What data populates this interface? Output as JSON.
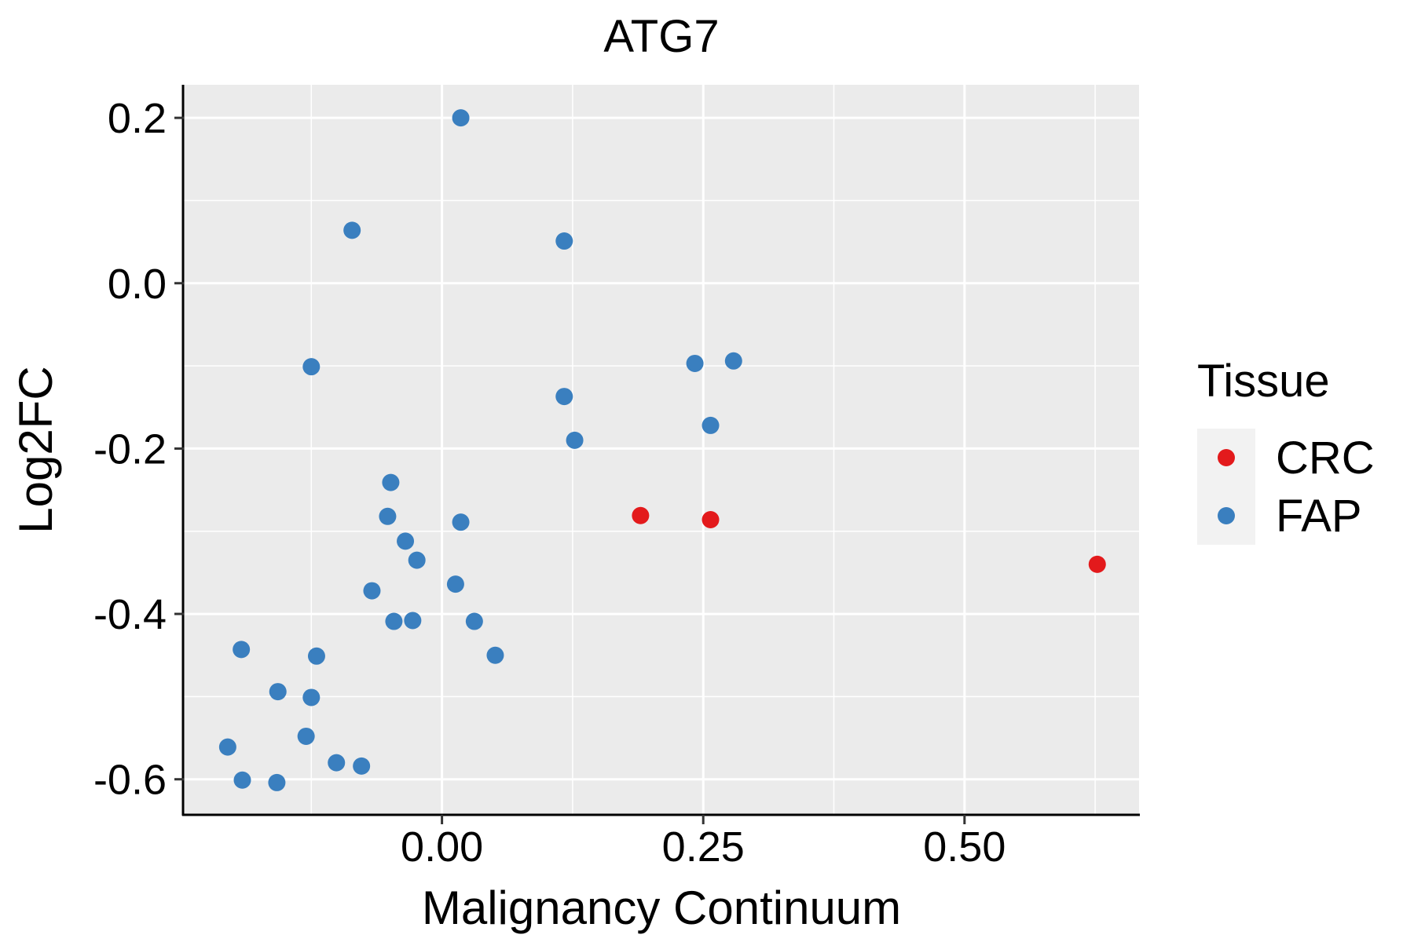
{
  "chart_data": {
    "type": "scatter",
    "title": "ATG7",
    "xlabel": "Malignancy Continuum",
    "ylabel": "Log2FC",
    "xlim": [
      -0.247,
      0.667
    ],
    "ylim": [
      -0.643,
      0.24
    ],
    "x_ticks": [
      0.0,
      0.25,
      0.5
    ],
    "x_tick_labels": [
      "0.00",
      "0.25",
      "0.50"
    ],
    "y_ticks": [
      0.2,
      0.0,
      -0.2,
      -0.4,
      -0.6
    ],
    "y_tick_labels": [
      "0.2",
      "0.0",
      "-0.2",
      "-0.4",
      "-0.6"
    ],
    "grid": true,
    "legend": {
      "title": "Tissue",
      "position": "right",
      "entries": [
        {
          "label": "CRC",
          "color": "#e31a1c"
        },
        {
          "label": "FAP",
          "color": "#3a7fbf"
        }
      ]
    },
    "series": [
      {
        "name": "CRC",
        "color": "#e31a1c",
        "points": [
          {
            "x": 0.19,
            "y": -0.281
          },
          {
            "x": 0.257,
            "y": -0.286
          },
          {
            "x": 0.627,
            "y": -0.34
          }
        ]
      },
      {
        "name": "FAP",
        "color": "#3a7fbf",
        "points": [
          {
            "x": 0.018,
            "y": 0.2
          },
          {
            "x": -0.086,
            "y": 0.064
          },
          {
            "x": 0.117,
            "y": 0.051
          },
          {
            "x": -0.125,
            "y": -0.101
          },
          {
            "x": 0.242,
            "y": -0.097
          },
          {
            "x": 0.279,
            "y": -0.094
          },
          {
            "x": 0.117,
            "y": -0.137
          },
          {
            "x": 0.257,
            "y": -0.172
          },
          {
            "x": 0.127,
            "y": -0.19
          },
          {
            "x": -0.049,
            "y": -0.241
          },
          {
            "x": -0.052,
            "y": -0.282
          },
          {
            "x": 0.018,
            "y": -0.289
          },
          {
            "x": -0.035,
            "y": -0.312
          },
          {
            "x": -0.024,
            "y": -0.335
          },
          {
            "x": 0.013,
            "y": -0.364
          },
          {
            "x": -0.067,
            "y": -0.372
          },
          {
            "x": -0.046,
            "y": -0.409
          },
          {
            "x": -0.028,
            "y": -0.408
          },
          {
            "x": 0.031,
            "y": -0.409
          },
          {
            "x": -0.192,
            "y": -0.443
          },
          {
            "x": -0.12,
            "y": -0.451
          },
          {
            "x": 0.051,
            "y": -0.45
          },
          {
            "x": -0.157,
            "y": -0.494
          },
          {
            "x": -0.125,
            "y": -0.501
          },
          {
            "x": -0.13,
            "y": -0.548
          },
          {
            "x": -0.205,
            "y": -0.561
          },
          {
            "x": -0.101,
            "y": -0.58
          },
          {
            "x": -0.077,
            "y": -0.584
          },
          {
            "x": -0.191,
            "y": -0.601
          },
          {
            "x": -0.158,
            "y": -0.604
          }
        ]
      }
    ]
  }
}
